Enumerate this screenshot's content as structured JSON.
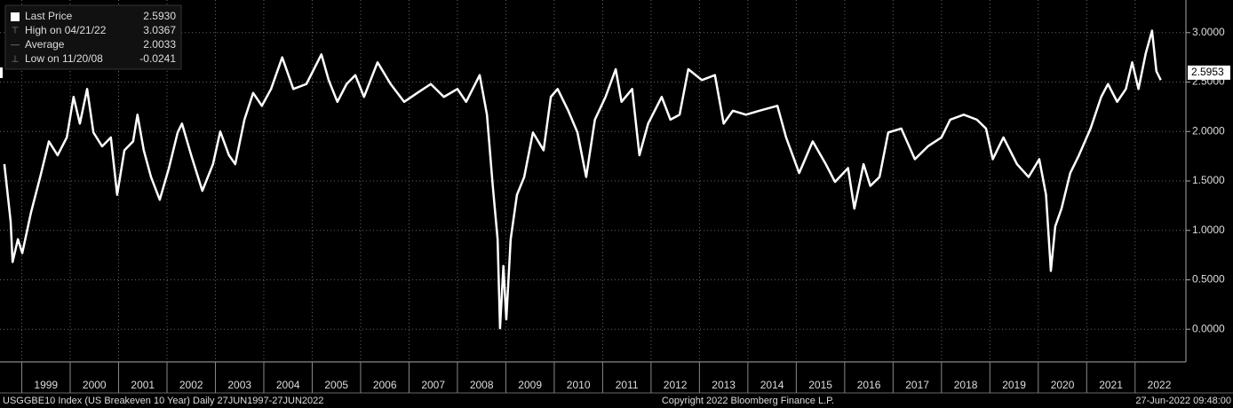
{
  "chart_data": {
    "type": "line",
    "color": "#ffffff",
    "grid": true,
    "legend": [
      {
        "label": "Last Price",
        "value": "2.5930"
      },
      {
        "label": "High on 04/21/22",
        "value": "3.0367"
      },
      {
        "label": "Average",
        "value": "2.0033"
      },
      {
        "label": "Low on 11/20/08",
        "value": "-0.0241"
      }
    ],
    "last_price_tag": 2.5953,
    "footer": [
      "USGGBE10 Index (US Breakeven 10 Year)  Daily 27JUN1997-27JUN2022",
      "Copyright 2022 Bloomberg Finance L.P.",
      "27-Jun-2022 09:48:00"
    ],
    "xlim": [
      1998.55,
      2023.05
    ],
    "xticks": [
      1999,
      2000,
      2001,
      2002,
      2003,
      2004,
      2005,
      2006,
      2007,
      2008,
      2009,
      2010,
      2011,
      2012,
      2013,
      2014,
      2015,
      2016,
      2017,
      2018,
      2019,
      2020,
      2021,
      2022
    ],
    "ylim": [
      -0.33,
      3.33
    ],
    "yticks": [
      {
        "value": 0,
        "label": "0.0000"
      },
      {
        "value": 0.5,
        "label": "0.5000"
      },
      {
        "value": 1,
        "label": "1.0000"
      },
      {
        "value": 1.5,
        "label": "1.5000"
      },
      {
        "value": 2,
        "label": "2.0000"
      },
      {
        "value": 2.5,
        "label": "2.5000"
      },
      {
        "value": 3,
        "label": "3.0000"
      }
    ],
    "x": [
      1998.64,
      1998.77,
      1998.81,
      1998.92,
      1999.01,
      1999.19,
      1999.38,
      1999.56,
      1999.74,
      1999.93,
      2000.07,
      2000.2,
      2000.35,
      2000.48,
      2000.66,
      2000.84,
      2000.97,
      2001.12,
      2001.3,
      2001.39,
      2001.52,
      2001.67,
      2001.85,
      2002.04,
      2002.22,
      2002.31,
      2002.5,
      2002.73,
      2002.95,
      2003.1,
      2003.28,
      2003.41,
      2003.6,
      2003.78,
      2003.96,
      2004.15,
      2004.38,
      2004.61,
      2004.88,
      2005.19,
      2005.34,
      2005.52,
      2005.71,
      2005.89,
      2006.07,
      2006.35,
      2006.62,
      2006.9,
      2007.17,
      2007.45,
      2007.72,
      2008.0,
      2008.18,
      2008.46,
      2008.61,
      2008.73,
      2008.83,
      2008.88,
      2008.95,
      2009.01,
      2009.1,
      2009.23,
      2009.38,
      2009.56,
      2009.78,
      2009.93,
      2010.07,
      2010.29,
      2010.48,
      2010.66,
      2010.84,
      2011.06,
      2011.27,
      2011.39,
      2011.61,
      2011.76,
      2011.94,
      2012.22,
      2012.4,
      2012.59,
      2012.77,
      2013.05,
      2013.32,
      2013.5,
      2013.69,
      2013.96,
      2014.24,
      2014.61,
      2014.79,
      2015.06,
      2015.34,
      2015.61,
      2015.8,
      2016.07,
      2016.2,
      2016.39,
      2016.53,
      2016.72,
      2016.9,
      2017.17,
      2017.45,
      2017.72,
      2018.0,
      2018.18,
      2018.46,
      2018.73,
      2018.92,
      2019.06,
      2019.28,
      2019.56,
      2019.8,
      2020.02,
      2020.16,
      2020.26,
      2020.35,
      2020.48,
      2020.66,
      2020.84,
      2021.08,
      2021.3,
      2021.44,
      2021.63,
      2021.81,
      2021.94,
      2022.07,
      2022.22,
      2022.35,
      2022.44,
      2022.53
    ],
    "values": [
      1.67,
      1.09,
      0.68,
      0.91,
      0.77,
      1.18,
      1.54,
      1.9,
      1.76,
      1.94,
      2.35,
      2.08,
      2.43,
      1.99,
      1.85,
      1.94,
      1.36,
      1.81,
      1.9,
      2.17,
      1.81,
      1.54,
      1.31,
      1.63,
      1.99,
      2.08,
      1.76,
      1.4,
      1.67,
      2.0,
      1.76,
      1.67,
      2.12,
      2.39,
      2.26,
      2.43,
      2.75,
      2.43,
      2.48,
      2.78,
      2.52,
      2.3,
      2.48,
      2.57,
      2.35,
      2.7,
      2.48,
      2.3,
      2.39,
      2.48,
      2.35,
      2.43,
      2.3,
      2.57,
      2.17,
      1.45,
      0.91,
      0.01,
      0.64,
      0.1,
      0.91,
      1.36,
      1.54,
      1.99,
      1.81,
      2.35,
      2.43,
      2.21,
      1.99,
      1.54,
      2.12,
      2.35,
      2.63,
      2.3,
      2.43,
      1.76,
      2.08,
      2.35,
      2.12,
      2.17,
      2.63,
      2.52,
      2.57,
      2.08,
      2.21,
      2.17,
      2.21,
      2.26,
      1.94,
      1.58,
      1.9,
      1.67,
      1.49,
      1.63,
      1.22,
      1.67,
      1.45,
      1.54,
      1.99,
      2.03,
      1.72,
      1.85,
      1.94,
      2.12,
      2.17,
      2.12,
      2.03,
      1.72,
      1.94,
      1.67,
      1.54,
      1.72,
      1.36,
      0.59,
      1.04,
      1.22,
      1.58,
      1.76,
      2.03,
      2.35,
      2.48,
      2.3,
      2.43,
      2.7,
      2.43,
      2.79,
      3.02,
      2.61,
      2.52
    ]
  }
}
